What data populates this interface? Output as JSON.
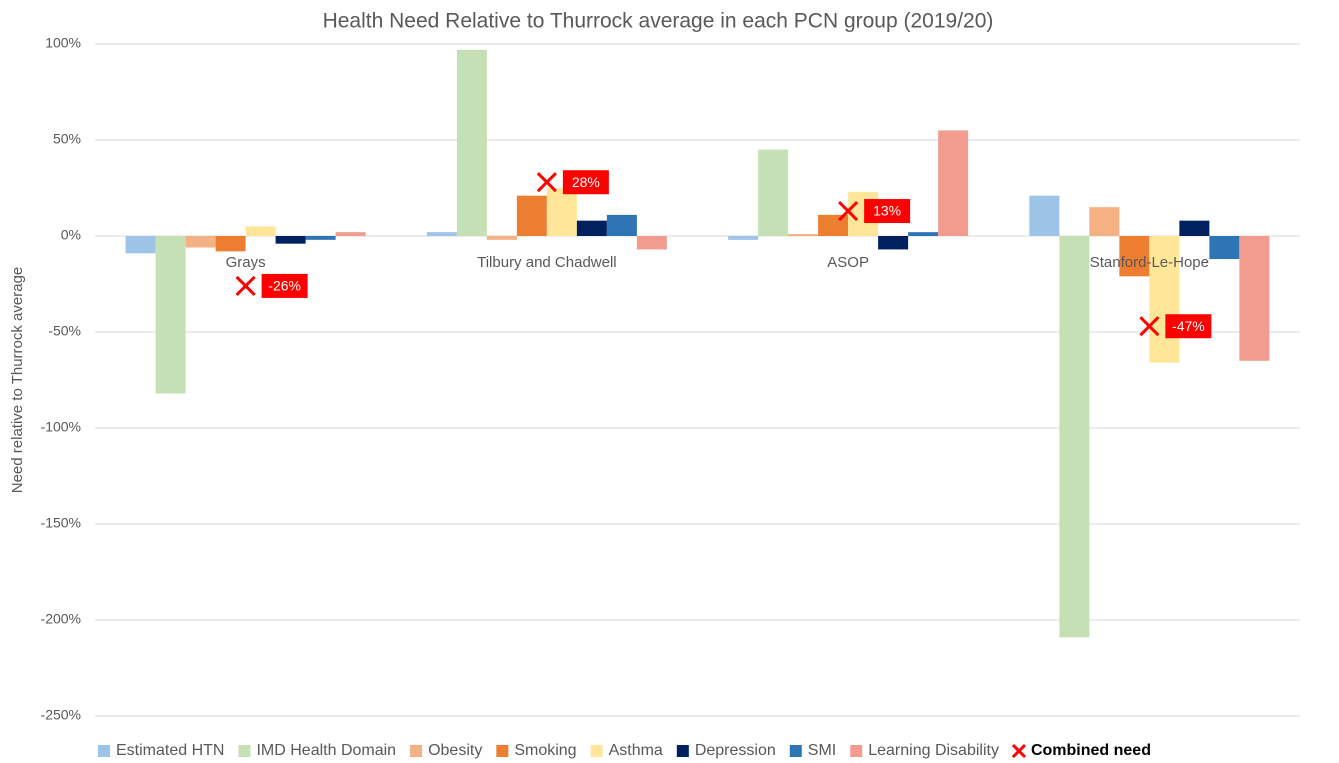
{
  "chart_data": {
    "type": "bar",
    "title": "Health Need Relative to Thurrock average in each PCN group (2019/20)",
    "y_label": "Need relative to Thurrock average",
    "categories": [
      "Grays",
      "Tilbury and Chadwell",
      "ASOP",
      "Stanford-Le-Hope"
    ],
    "series": [
      {
        "name": "Estimated HTN",
        "color": "#9dc3e6",
        "values": [
          -9,
          2,
          -2,
          21
        ]
      },
      {
        "name": "IMD Health Domain",
        "color": "#c5e0b4",
        "values": [
          -82,
          97,
          45,
          -209
        ]
      },
      {
        "name": "Obesity",
        "color": "#f4b183",
        "values": [
          -6,
          -2,
          1,
          15
        ]
      },
      {
        "name": "Smoking",
        "color": "#ed7d31",
        "values": [
          -8,
          21,
          11,
          -21
        ]
      },
      {
        "name": "Asthma",
        "color": "#ffe699",
        "values": [
          5,
          25,
          23,
          -66
        ]
      },
      {
        "name": "Depression",
        "color": "#002060",
        "values": [
          -4,
          8,
          -7,
          8
        ]
      },
      {
        "name": "SMI",
        "color": "#2e75b6",
        "values": [
          -2,
          11,
          2,
          -12
        ]
      },
      {
        "name": "Learning Disability",
        "color": "#f19c8f",
        "values": [
          2,
          -7,
          55,
          -65
        ]
      },
      {
        "name": "Combined need",
        "color": "#ff0000",
        "type": "scatter",
        "values": [
          -26,
          28,
          13,
          -47
        ],
        "value_labels": [
          "-26%",
          "28%",
          "13%",
          "-47%"
        ]
      }
    ],
    "ylim": [
      -250,
      100
    ],
    "yticks": [
      {
        "value": 100,
        "label": "100%"
      },
      {
        "value": 50,
        "label": "50%"
      },
      {
        "value": 0,
        "label": "0%"
      },
      {
        "value": -50,
        "label": "-50%"
      },
      {
        "value": -100,
        "label": "-100%"
      },
      {
        "value": -150,
        "label": "-150%"
      },
      {
        "value": -200,
        "label": "-200%"
      },
      {
        "value": -250,
        "label": "-250%"
      }
    ],
    "grid": true,
    "legend": "bottom"
  }
}
